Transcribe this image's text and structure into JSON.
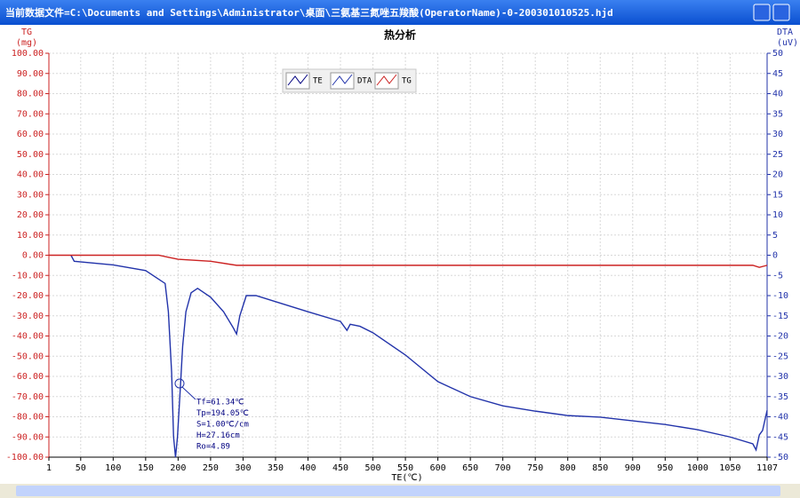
{
  "window": {
    "title": "当前数据文件=C:\\Documents and Settings\\Administrator\\桌面\\三氨基三氮唑五羧酸(OperatorName)-0-200301010525.hjd"
  },
  "chart_data": {
    "type": "line",
    "title": "热分析",
    "xlabel": "TE(℃)",
    "ylabel": "TG",
    "ylabel_unit": "(mg)",
    "y2label": "DTA",
    "y2label_unit": "(uV)",
    "xlim": [
      1,
      1107
    ],
    "xticks": [
      1,
      50,
      100,
      150,
      200,
      250,
      300,
      350,
      400,
      450,
      500,
      550,
      600,
      650,
      700,
      750,
      800,
      850,
      900,
      950,
      1000,
      1050,
      1107
    ],
    "ylim": [
      -100,
      100
    ],
    "yticks": [
      {
        "value": 100,
        "label": "100.00"
      },
      {
        "value": 90,
        "label": "90.00"
      },
      {
        "value": 80,
        "label": "80.00"
      },
      {
        "value": 70,
        "label": "70.00"
      },
      {
        "value": 60,
        "label": "60.00"
      },
      {
        "value": 50,
        "label": "50.00"
      },
      {
        "value": 40,
        "label": "40.00"
      },
      {
        "value": 30,
        "label": "30.00"
      },
      {
        "value": 20,
        "label": "20.00"
      },
      {
        "value": 10,
        "label": "10.00"
      },
      {
        "value": 0,
        "label": "0.00"
      },
      {
        "value": -10,
        "label": "-10.00"
      },
      {
        "value": -20,
        "label": "-20.00"
      },
      {
        "value": -30,
        "label": "-30.00"
      },
      {
        "value": -40,
        "label": "-40.00"
      },
      {
        "value": -50,
        "label": "-50.00"
      },
      {
        "value": -60,
        "label": "-60.00"
      },
      {
        "value": -70,
        "label": "-70.00"
      },
      {
        "value": -80,
        "label": "-80.00"
      },
      {
        "value": -90,
        "label": "-90.00"
      },
      {
        "value": -100,
        "label": "-100.00"
      }
    ],
    "y2lim": [
      -50,
      50
    ],
    "y2ticks": [
      50,
      45,
      40,
      35,
      30,
      25,
      20,
      15,
      10,
      5,
      0,
      -5,
      -10,
      -15,
      -20,
      -25,
      -30,
      -35,
      -40,
      -45,
      -50
    ],
    "grid": true,
    "legend": [
      {
        "label": "TE",
        "color": "#000080"
      },
      {
        "label": "DTA",
        "color": "#2233aa"
      },
      {
        "label": "TG",
        "color": "#cc2222"
      }
    ],
    "series": [
      {
        "color": "#2233aa",
        "axis": "y2",
        "x": [
          35,
          40,
          100,
          150,
          180,
          185,
          190,
          193,
          196,
          199,
          203,
          207,
          212,
          220,
          230,
          250,
          270,
          285,
          290,
          295,
          305,
          320,
          350,
          400,
          450,
          460,
          465,
          480,
          500,
          550,
          600,
          650,
          700,
          750,
          800,
          850,
          900,
          950,
          1000,
          1050,
          1085,
          1090,
          1095,
          1100,
          1107
        ],
        "values": [
          0,
          -1.5,
          -2.4,
          -3.8,
          -7,
          -14,
          -29,
          -45,
          -50,
          -45,
          -34,
          -22.5,
          -14,
          -9.3,
          -8.2,
          -10.4,
          -14,
          -18,
          -19.5,
          -15,
          -10,
          -10,
          -11.5,
          -14,
          -16.4,
          -18.6,
          -17.1,
          -17.6,
          -19.2,
          -24.7,
          -31.3,
          -35,
          -37.3,
          -38.6,
          -39.7,
          -40.1,
          -41,
          -41.9,
          -43.2,
          -45,
          -46.7,
          -48.2,
          -44.5,
          -43.4,
          -38.4
        ]
      },
      {
        "color": "#cc2222",
        "x": [
          1,
          170,
          185,
          200,
          250,
          290,
          400,
          1085,
          1095,
          1107
        ],
        "values": [
          0,
          0,
          -1,
          -2,
          -3,
          -5,
          -5,
          -5,
          -6,
          -5
        ]
      }
    ],
    "annotations": [
      "Tf=61.34℃",
      "Tp=194.05℃",
      "S=1.00℃/cm",
      "H=27.16cm",
      "Ro=4.89"
    ]
  }
}
